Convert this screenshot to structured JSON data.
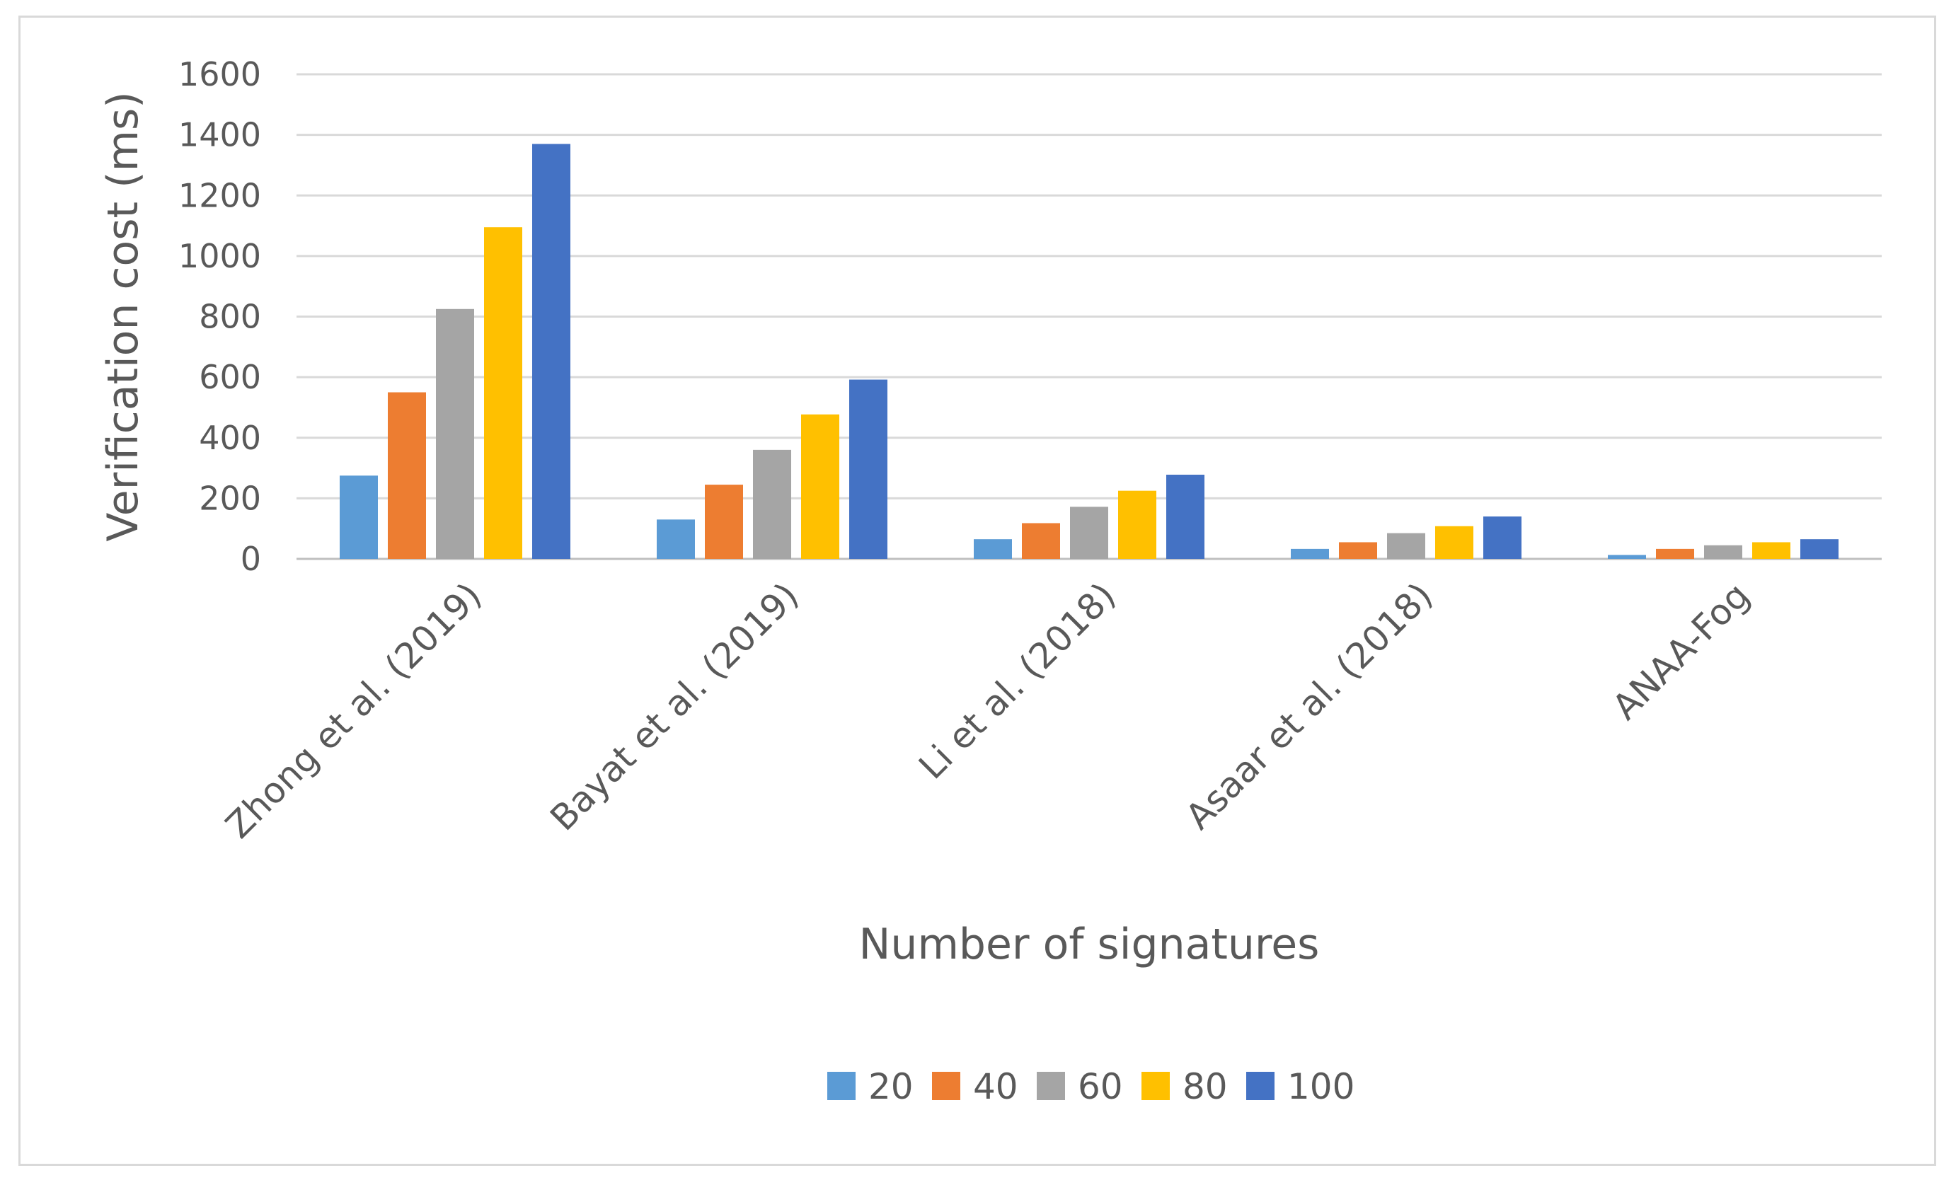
{
  "chart_data": {
    "type": "bar",
    "title": "",
    "xlabel": "Number of signatures",
    "ylabel": "Verification cost  (ms)",
    "ylim": [
      0,
      1600
    ],
    "yticks": [
      0,
      200,
      400,
      600,
      800,
      1000,
      1200,
      1400,
      1600
    ],
    "grid": true,
    "legend_position": "bottom",
    "categories": [
      "Zhong et al. (2019)",
      "Bayat et al. (2019)",
      "Li et al. (2018)",
      "Asaar et al. (2018)",
      "ANAA-Fog"
    ],
    "series": [
      {
        "name": "20",
        "color": "#5b9bd5",
        "values": [
          275,
          130,
          65,
          33,
          13
        ]
      },
      {
        "name": "40",
        "color": "#ed7d31",
        "values": [
          550,
          245,
          118,
          55,
          33
        ]
      },
      {
        "name": "60",
        "color": "#a5a5a5",
        "values": [
          825,
          360,
          172,
          85,
          45
        ]
      },
      {
        "name": "80",
        "color": "#ffc000",
        "values": [
          1095,
          477,
          225,
          108,
          55
        ]
      },
      {
        "name": "100",
        "color": "#4472c4",
        "values": [
          1370,
          592,
          278,
          140,
          65
        ]
      }
    ]
  }
}
